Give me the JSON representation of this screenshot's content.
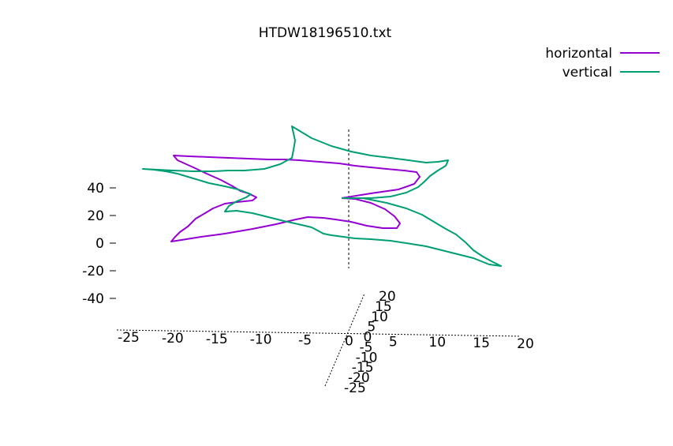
{
  "chart_data": {
    "type": "line",
    "title": "HTDW18196510.txt",
    "legend_position": "top-right",
    "grid": false,
    "series": [
      {
        "name": "horizontal",
        "color": "#9400d3"
      },
      {
        "name": "vertical",
        "color": "#009e73"
      }
    ],
    "axes": {
      "x": {
        "range": [
          -25,
          20
        ],
        "ticks": [
          "-25",
          "-20",
          "-15",
          "-10",
          "-5",
          "0",
          "5",
          "10",
          "15",
          "20"
        ]
      },
      "y": {
        "range": [
          -25,
          20
        ],
        "ticks": [
          "-25",
          "-20",
          "-15",
          "-10",
          "-5",
          "0",
          "5",
          "10",
          "15",
          "20"
        ]
      },
      "z": {
        "ticks": [
          "-40",
          "-20",
          "0",
          "20",
          "40"
        ]
      }
    },
    "traces_screen_estimate": {
      "horizontal": [
        [
          433,
          251
        ],
        [
          470,
          245
        ],
        [
          505,
          240
        ],
        [
          525,
          233
        ],
        [
          532,
          224
        ],
        [
          528,
          218
        ],
        [
          512,
          216
        ],
        [
          490,
          214
        ],
        [
          470,
          212
        ],
        [
          450,
          210
        ],
        [
          430,
          207
        ],
        [
          405,
          205
        ],
        [
          380,
          203
        ],
        [
          360,
          202
        ],
        [
          340,
          202
        ],
        [
          315,
          201
        ],
        [
          290,
          200
        ],
        [
          265,
          199
        ],
        [
          240,
          198
        ],
        [
          220,
          197
        ],
        [
          225,
          203
        ],
        [
          245,
          212
        ],
        [
          262,
          220
        ],
        [
          280,
          228
        ],
        [
          295,
          236
        ],
        [
          305,
          242
        ],
        [
          315,
          245
        ],
        [
          325,
          250
        ],
        [
          320,
          254
        ],
        [
          300,
          256
        ],
        [
          285,
          258
        ],
        [
          270,
          264
        ],
        [
          260,
          270
        ],
        [
          248,
          277
        ],
        [
          238,
          287
        ],
        [
          228,
          294
        ],
        [
          222,
          300
        ],
        [
          217,
          306
        ],
        [
          230,
          304
        ],
        [
          255,
          300
        ],
        [
          285,
          296
        ],
        [
          320,
          290
        ],
        [
          350,
          284
        ],
        [
          375,
          278
        ],
        [
          390,
          275
        ],
        [
          410,
          276
        ],
        [
          425,
          278
        ],
        [
          445,
          281
        ],
        [
          465,
          286
        ],
        [
          485,
          289
        ],
        [
          503,
          289
        ],
        [
          507,
          283
        ],
        [
          500,
          274
        ],
        [
          488,
          265
        ],
        [
          470,
          257
        ],
        [
          450,
          252
        ],
        [
          433,
          251
        ]
      ],
      "vertical": [
        [
          433,
          251
        ],
        [
          460,
          251
        ],
        [
          490,
          257
        ],
        [
          515,
          264
        ],
        [
          535,
          272
        ],
        [
          550,
          281
        ],
        [
          565,
          290
        ],
        [
          578,
          297
        ],
        [
          590,
          307
        ],
        [
          600,
          317
        ],
        [
          612,
          325
        ],
        [
          625,
          332
        ],
        [
          635,
          337
        ],
        [
          620,
          335
        ],
        [
          600,
          327
        ],
        [
          580,
          322
        ],
        [
          560,
          317
        ],
        [
          540,
          312
        ],
        [
          515,
          308
        ],
        [
          495,
          305
        ],
        [
          470,
          303
        ],
        [
          450,
          302
        ],
        [
          435,
          300
        ],
        [
          420,
          298
        ],
        [
          410,
          296
        ],
        [
          395,
          288
        ],
        [
          378,
          284
        ],
        [
          360,
          280
        ],
        [
          340,
          275
        ],
        [
          320,
          270
        ],
        [
          300,
          267
        ],
        [
          285,
          268
        ],
        [
          290,
          261
        ],
        [
          300,
          255
        ],
        [
          312,
          250
        ],
        [
          318,
          246
        ],
        [
          302,
          240
        ],
        [
          285,
          236
        ],
        [
          265,
          232
        ],
        [
          245,
          226
        ],
        [
          225,
          220
        ],
        [
          210,
          217
        ],
        [
          195,
          215
        ],
        [
          181,
          214
        ],
        [
          200,
          215
        ],
        [
          220,
          216
        ],
        [
          245,
          217
        ],
        [
          270,
          217
        ],
        [
          290,
          216
        ],
        [
          310,
          216
        ],
        [
          335,
          214
        ],
        [
          355,
          208
        ],
        [
          370,
          200
        ],
        [
          372,
          190
        ],
        [
          374,
          178
        ],
        [
          370,
          160
        ],
        [
          395,
          175
        ],
        [
          420,
          185
        ],
        [
          445,
          192
        ],
        [
          470,
          197
        ],
        [
          495,
          200
        ],
        [
          518,
          203
        ],
        [
          540,
          206
        ],
        [
          555,
          205
        ],
        [
          568,
          203
        ],
        [
          565,
          210
        ],
        [
          555,
          216
        ],
        [
          545,
          223
        ],
        [
          538,
          230
        ],
        [
          530,
          237
        ],
        [
          515,
          244
        ],
        [
          495,
          249
        ],
        [
          470,
          251
        ],
        [
          450,
          251
        ],
        [
          433,
          251
        ]
      ]
    }
  }
}
